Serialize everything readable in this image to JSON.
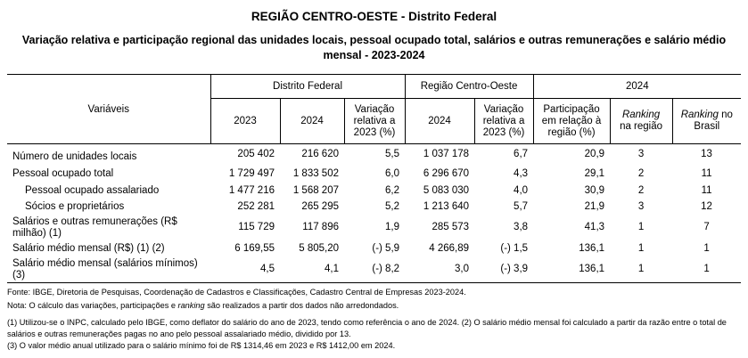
{
  "title": "REGIÃO CENTRO-OESTE - Distrito Federal",
  "subtitle": "Variação relativa e participação regional das unidades locais, pessoal ocupado total, salários e outras remunerações e salário médio mensal - 2023-2024",
  "header": {
    "variables": "Variáveis",
    "group_df": "Distrito Federal",
    "group_region": "Região Centro-Oeste",
    "group_2024": "2024",
    "col_2023": "2023",
    "col_2024": "2024",
    "col_var": "Variação relativa a 2023 (%)",
    "col_region_2024": "2024",
    "col_region_var": "Variação relativa a 2023 (%)",
    "col_part": "Participação em relação à região (%)",
    "col_rank_region_italic": "Ranking",
    "col_rank_region_rest": " na região",
    "col_rank_brazil_italic": "Ranking",
    "col_rank_brazil_rest": " no Brasil"
  },
  "rows": [
    {
      "label": "Número de unidades locais",
      "v2023": "205 402",
      "v2024": "216 620",
      "var": "5,5",
      "reg2024": "1 037 178",
      "regvar": "6,7",
      "part": "20,9",
      "rank_reg": "3",
      "rank_br": "13"
    },
    {
      "label": "Pessoal ocupado total",
      "v2023": "1 729 497",
      "v2024": "1 833 502",
      "var": "6,0",
      "reg2024": "6 296 670",
      "regvar": "4,3",
      "part": "29,1",
      "rank_reg": "2",
      "rank_br": "11"
    },
    {
      "label": "Pessoal ocupado assalariado",
      "v2023": "1 477 216",
      "v2024": "1 568 207",
      "var": "6,2",
      "reg2024": "5 083 030",
      "regvar": "4,0",
      "part": "30,9",
      "rank_reg": "2",
      "rank_br": "11"
    },
    {
      "label": "Sócios e proprietários",
      "v2023": "252 281",
      "v2024": "265 295",
      "var": "5,2",
      "reg2024": "1 213 640",
      "regvar": "5,7",
      "part": "21,9",
      "rank_reg": "3",
      "rank_br": "12"
    },
    {
      "label": "Salários e outras remunerações (R$ milhão) (1)",
      "v2023": "115 729",
      "v2024": "117 896",
      "var": "1,9",
      "reg2024": "285 573",
      "regvar": "3,8",
      "part": "41,3",
      "rank_reg": "1",
      "rank_br": "7"
    },
    {
      "label": "Salário médio mensal (R$) (1) (2)",
      "v2023": "6 169,55",
      "v2024": "5 805,20",
      "var": "(-) 5,9",
      "reg2024": "4 266,89",
      "regvar": "(-) 1,5",
      "part": "136,1",
      "rank_reg": "1",
      "rank_br": "1"
    },
    {
      "label": "Salário médio mensal (salários mínimos) (3)",
      "v2023": "4,5",
      "v2024": "4,1",
      "var": "(-) 8,2",
      "reg2024": "3,0",
      "regvar": "(-) 3,9",
      "part": "136,1",
      "rank_reg": "1",
      "rank_br": "1"
    }
  ],
  "footer": {
    "source": "Fonte: IBGE, Diretoria de Pesquisas, Coordenação de Cadastros e Classificações, Cadastro Central de Empresas 2023-2024.",
    "note_pre": "Nota: O cálculo das variações, participações e ",
    "note_italic": "ranking",
    "note_post": " são realizados a partir dos dados não arredondados.",
    "footnote_a": "(1) Utilizou-se o INPC, calculado pelo IBGE, como deflator do salário do ano de 2023, tendo como referência o ano de 2024. (2) O salário médio mensal foi calculado a partir da razão entre o total de salários e outras remunerações pagas no ano pelo pessoal assalariado médio, dividido por 13.",
    "footnote_b": "(3) O valor médio anual utilizado para o salário mínimo foi de R$ 1314,46 em 2023 e R$ 1412,00 em 2024."
  }
}
